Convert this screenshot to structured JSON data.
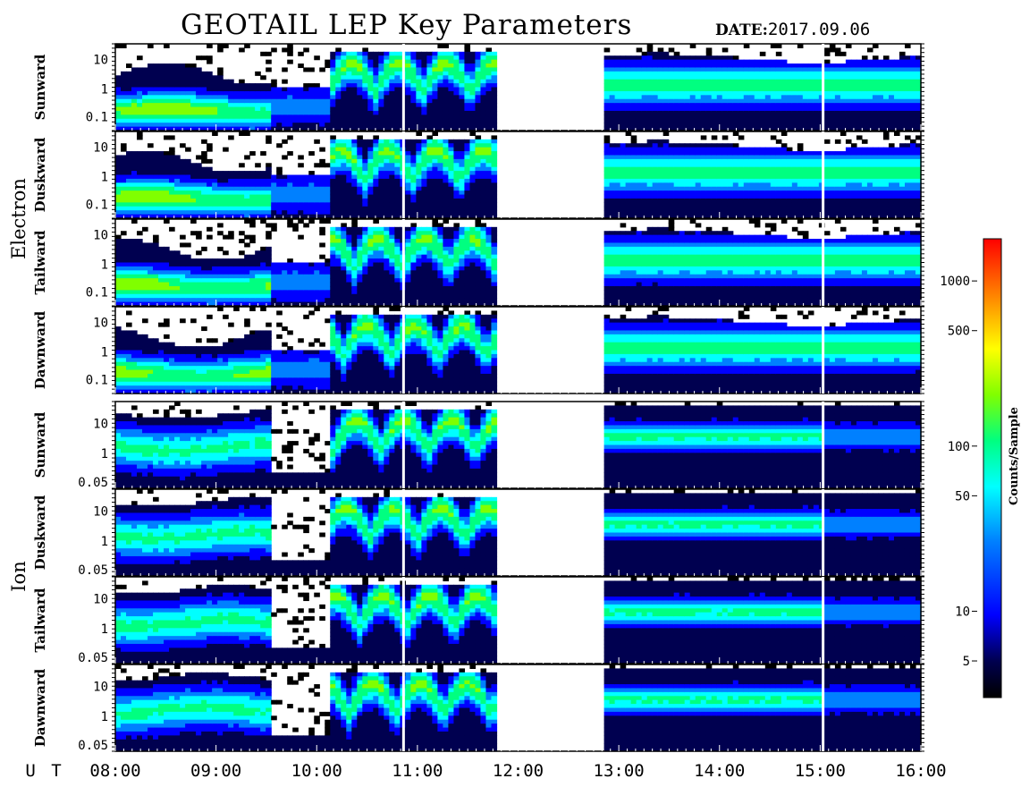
{
  "header": {
    "title": "GEOTAIL LEP Key Parameters",
    "date_label": "DATE:",
    "date_value": "2017.09.06"
  },
  "chart_data": {
    "type": "heatmap",
    "x_axis": {
      "label": "U T",
      "range": [
        "08:00",
        "16:00"
      ],
      "tick_labels": [
        "08:00",
        "09:00",
        "10:00",
        "11:00",
        "12:00",
        "13:00",
        "14:00",
        "15:00",
        "16:00"
      ]
    },
    "data_gap": [
      "11:45",
      "12:50"
    ],
    "groups": [
      {
        "name": "Electron",
        "y_tick_labels": [
          "10",
          "1",
          "0.1"
        ],
        "y_scale": "log",
        "panels": [
          "Sunward",
          "Duskward",
          "Tailward",
          "Dawnward"
        ]
      },
      {
        "name": "Ion",
        "y_tick_labels": [
          "10",
          "1",
          "0.05"
        ],
        "y_scale": "log",
        "panels": [
          "Sunward",
          "Duskward",
          "Tailward",
          "Dawnward"
        ]
      }
    ],
    "colorbar": {
      "label": "Counts/Sample",
      "scale": "log",
      "range": [
        3,
        1800
      ],
      "tick_labels": [
        "1000",
        "500",
        "100",
        "50",
        "10",
        "5"
      ],
      "tick_values": [
        1000,
        500,
        100,
        50,
        10,
        5
      ],
      "colors": [
        "#000000",
        "#00008b",
        "#0000ff",
        "#0080ff",
        "#00ffff",
        "#00ff80",
        "#80ff00",
        "#ffff00",
        "#ff8000",
        "#ff0000"
      ]
    }
  }
}
